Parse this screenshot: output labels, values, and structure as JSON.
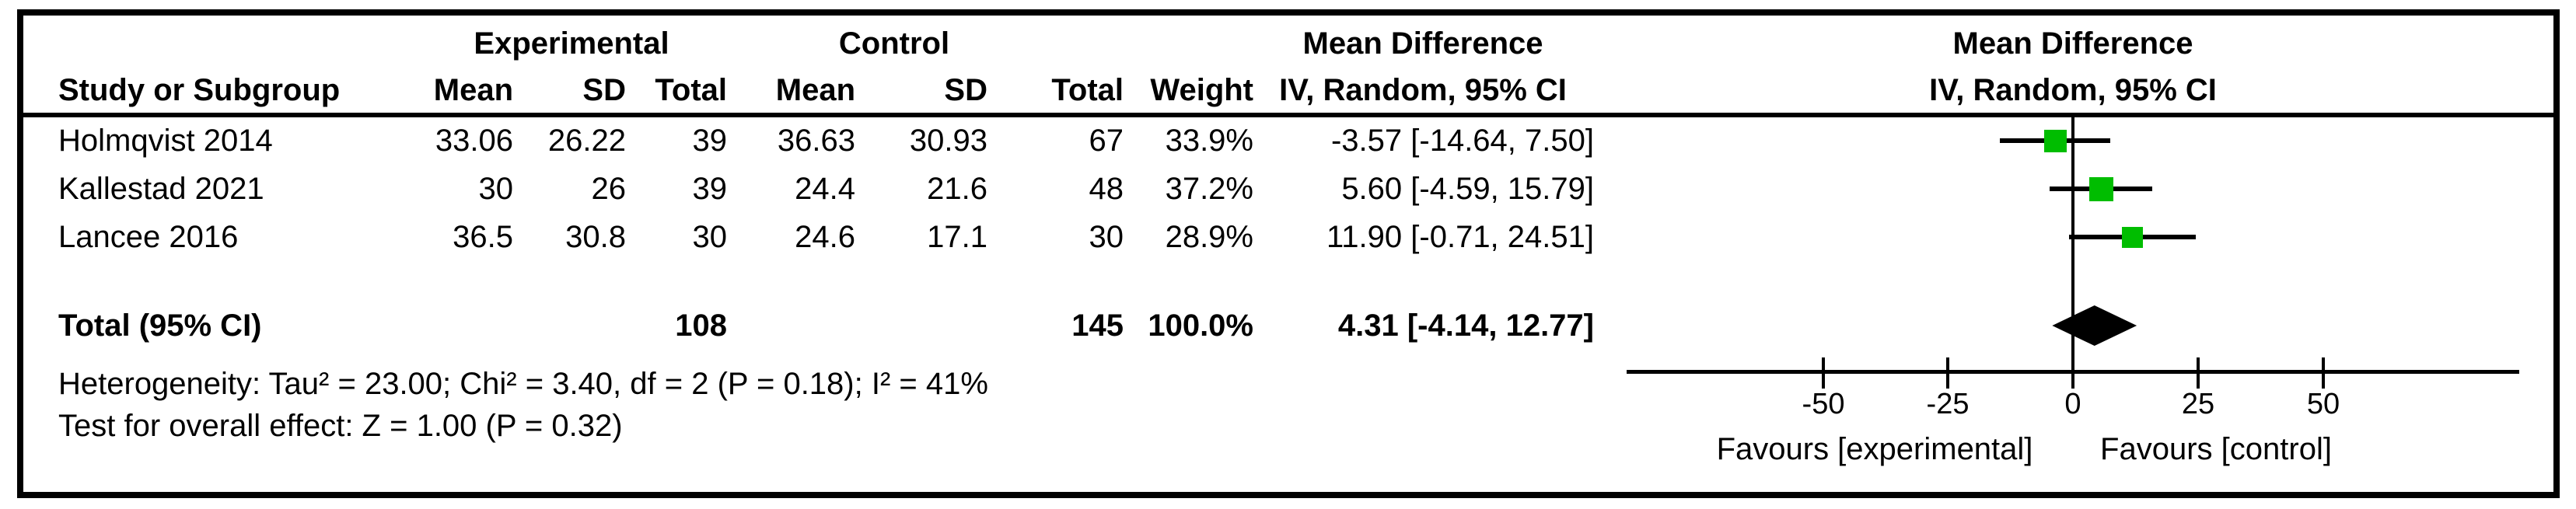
{
  "table": {
    "group_headers": {
      "experimental": "Experimental",
      "control": "Control",
      "md_text": "Mean Difference",
      "md_plot": "Mean Difference"
    },
    "col_headers": {
      "study": "Study or Subgroup",
      "mean_e": "Mean",
      "sd_e": "SD",
      "total_e": "Total",
      "mean_c": "Mean",
      "sd_c": "SD",
      "total_c": "Total",
      "weight": "Weight",
      "iv_text": "IV, Random, 95% CI",
      "iv_plot": "IV, Random, 95% CI"
    },
    "rows": [
      {
        "study": "Holmqvist 2014",
        "mean_e": "33.06",
        "sd_e": "26.22",
        "total_e": "39",
        "mean_c": "36.63",
        "sd_c": "30.93",
        "total_c": "67",
        "weight": "33.9%",
        "ci": "-3.57 [-14.64, 7.50]"
      },
      {
        "study": "Kallestad 2021",
        "mean_e": "30",
        "sd_e": "26",
        "total_e": "39",
        "mean_c": "24.4",
        "sd_c": "21.6",
        "total_c": "48",
        "weight": "37.2%",
        "ci": "5.60 [-4.59, 15.79]"
      },
      {
        "study": "Lancee 2016",
        "mean_e": "36.5",
        "sd_e": "30.8",
        "total_e": "30",
        "mean_c": "24.6",
        "sd_c": "17.1",
        "total_c": "30",
        "weight": "28.9%",
        "ci": "11.90 [-0.71, 24.51]"
      }
    ],
    "total_row": {
      "label": "Total (95% CI)",
      "total_e": "108",
      "total_c": "145",
      "weight": "100.0%",
      "ci": "4.31 [-4.14, 12.77]"
    },
    "heterogeneity": "Heterogeneity: Tau² = 23.00; Chi² = 3.40, df = 2 (P = 0.18); I² = 41%",
    "overall_effect": "Test for overall effect: Z = 1.00 (P = 0.32)"
  },
  "chart_data": {
    "type": "forest",
    "title": "Mean Difference",
    "subtitle": "IV, Random, 95% CI",
    "effect_measure": "Mean Difference",
    "model": "IV, Random, 95% CI",
    "studies": [
      {
        "name": "Holmqvist 2014",
        "effect": -3.57,
        "ci_low": -14.64,
        "ci_high": 7.5,
        "weight_pct": 33.9
      },
      {
        "name": "Kallestad 2021",
        "effect": 5.6,
        "ci_low": -4.59,
        "ci_high": 15.79,
        "weight_pct": 37.2
      },
      {
        "name": "Lancee 2016",
        "effect": 11.9,
        "ci_low": -0.71,
        "ci_high": 24.51,
        "weight_pct": 28.9
      }
    ],
    "total": {
      "label": "Total (95% CI)",
      "effect": 4.31,
      "ci_low": -4.14,
      "ci_high": 12.77,
      "weight_pct": 100.0
    },
    "axis": {
      "ticks": [
        -50,
        -25,
        0,
        25,
        50
      ],
      "tick_labels": [
        "-50",
        "-25",
        "0",
        "25",
        "50"
      ],
      "range": [
        -89,
        89
      ],
      "zero_line": true
    },
    "footer_left": "Favours [experimental]",
    "footer_right": "Favours [control]",
    "marker_color": "#00BD00",
    "line_color": "#000000"
  }
}
